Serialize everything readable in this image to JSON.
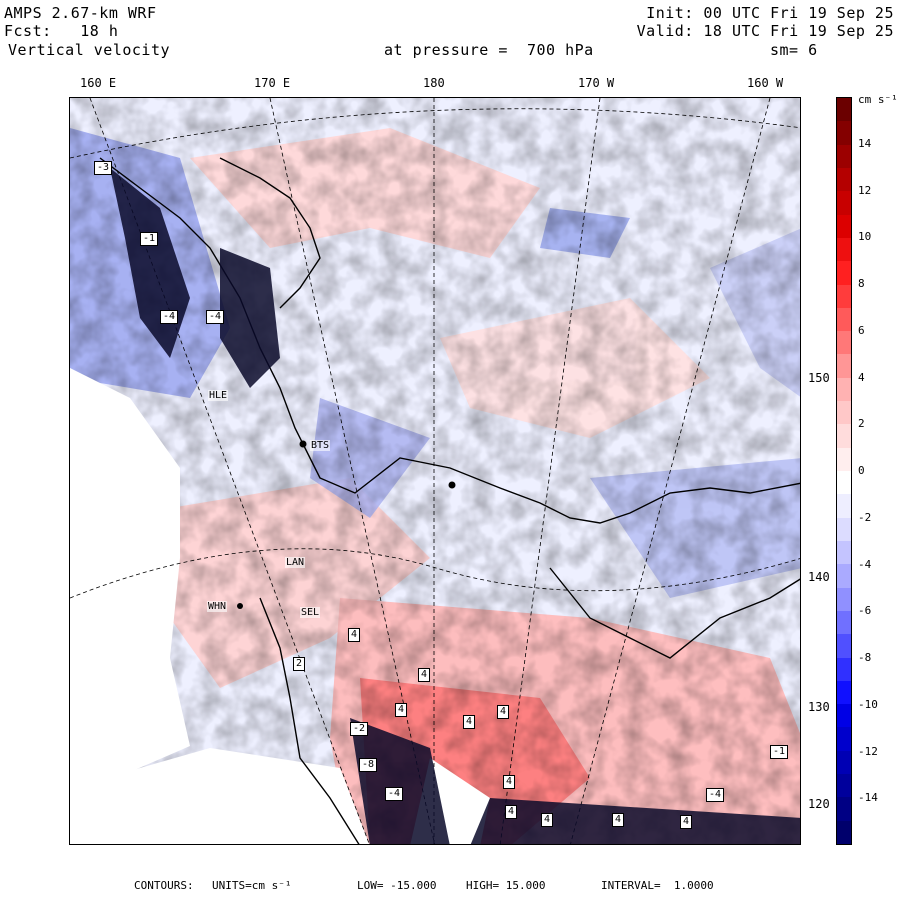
{
  "header": {
    "model": "AMPS 2.67-km WRF",
    "forecast": "Fcst:   18 h",
    "field": "Vertical velocity",
    "init": "Init: 00 UTC Fri 19 Sep 25",
    "valid": "Valid: 18 UTC Fri 19 Sep 25",
    "level": "at pressure =  700 hPa",
    "smoothing": "sm= 6"
  },
  "longitude_labels": [
    "160 E",
    "170 E",
    "180",
    "170 W",
    "160 W"
  ],
  "latitude_labels": [
    "150 W",
    "140 W",
    "130 W",
    "120 W"
  ],
  "colorbar": {
    "units": "cm s⁻¹",
    "tick_labels": [
      "14",
      "12",
      "10",
      "8",
      "6",
      "4",
      "2",
      "0",
      "-2",
      "-4",
      "-6",
      "-8",
      "-10",
      "-12",
      "-14"
    ],
    "levels": [
      16,
      15,
      14,
      13,
      12,
      11,
      10,
      9,
      8,
      7,
      6,
      5,
      4,
      3,
      2,
      1,
      0,
      -1,
      -2,
      -3,
      -4,
      -5,
      -6,
      -7,
      -8,
      -9,
      -10,
      -11,
      -12,
      -13,
      -14,
      -15,
      -16
    ],
    "colors": [
      "#6b0000",
      "#840000",
      "#9c0000",
      "#b40000",
      "#c80000",
      "#dc0000",
      "#ee1010",
      "#ff2020",
      "#ff3c3c",
      "#ff5a5a",
      "#ff7878",
      "#ff9696",
      "#ffb2b2",
      "#ffc8c8",
      "#ffdcdc",
      "#ffeeee",
      "#ffffff",
      "#eeeeff",
      "#dcdcff",
      "#c4c4ff",
      "#aaaaff",
      "#9090ff",
      "#7070ff",
      "#5050ff",
      "#3030ff",
      "#1010ff",
      "#0000e6",
      "#0000cc",
      "#0000b4",
      "#00009c",
      "#000084",
      "#00006c"
    ]
  },
  "stations": [
    "BTS",
    "LAN",
    "WHN",
    "SEL",
    "HLE"
  ],
  "contour_labels": [
    "4",
    "4",
    "2",
    "-3",
    "-4",
    "-4",
    "-1",
    "4",
    "-2",
    "4",
    "-8",
    "4",
    "4",
    "4",
    "-4",
    "4",
    "4",
    "-1",
    "-4",
    "4"
  ],
  "footer": {
    "contours_label": "CONTOURS:",
    "units": "UNITS=cm s⁻¹",
    "low": "LOW= -15.000",
    "high": "HIGH= 15.000",
    "interval": "INTERVAL=  1.0000"
  }
}
